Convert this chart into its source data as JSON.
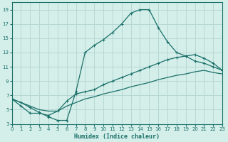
{
  "xlabel": "Humidex (Indice chaleur)",
  "bg_color": "#d4eeea",
  "grid_color": "#b8d8d4",
  "line_color": "#1a7068",
  "xlim": [
    0,
    23
  ],
  "ylim": [
    3,
    20
  ],
  "xticks": [
    0,
    1,
    2,
    3,
    4,
    5,
    6,
    7,
    8,
    9,
    10,
    11,
    12,
    13,
    14,
    15,
    16,
    17,
    18,
    19,
    20,
    21,
    22,
    23
  ],
  "yticks": [
    3,
    5,
    7,
    9,
    11,
    13,
    15,
    17,
    19
  ],
  "curve1_x": [
    0,
    1,
    2,
    3,
    4,
    5,
    6,
    7,
    8,
    9,
    10,
    11,
    12,
    13,
    14,
    15,
    16,
    17,
    18,
    19,
    20,
    21,
    22,
    23
  ],
  "curve1_y": [
    6.5,
    6.0,
    5.3,
    4.6,
    4.0,
    3.5,
    3.5,
    7.5,
    13.0,
    14.0,
    14.8,
    15.8,
    17.0,
    18.5,
    19.0,
    19.0,
    16.5,
    14.5,
    13.0,
    12.5,
    11.8,
    11.5,
    11.0,
    10.5
  ],
  "curve2_x": [
    0,
    1,
    2,
    3,
    4,
    5,
    6,
    7,
    8,
    9,
    10,
    11,
    12,
    13,
    14,
    15,
    16,
    17,
    18,
    19,
    20,
    21,
    22,
    23
  ],
  "curve2_y": [
    6.5,
    5.5,
    4.5,
    4.5,
    4.2,
    4.8,
    6.2,
    7.2,
    7.5,
    7.8,
    8.5,
    9.0,
    9.5,
    10.0,
    10.5,
    11.0,
    11.5,
    12.0,
    12.3,
    12.5,
    12.7,
    12.2,
    11.5,
    10.5
  ],
  "curve3_x": [
    0,
    1,
    2,
    3,
    4,
    5,
    6,
    7,
    8,
    9,
    10,
    11,
    12,
    13,
    14,
    15,
    16,
    17,
    18,
    19,
    20,
    21,
    22,
    23
  ],
  "curve3_y": [
    6.5,
    6.0,
    5.5,
    5.0,
    4.8,
    4.8,
    5.5,
    6.0,
    6.5,
    6.8,
    7.2,
    7.5,
    7.8,
    8.2,
    8.5,
    8.8,
    9.2,
    9.5,
    9.8,
    10.0,
    10.3,
    10.5,
    10.2,
    10.0
  ]
}
